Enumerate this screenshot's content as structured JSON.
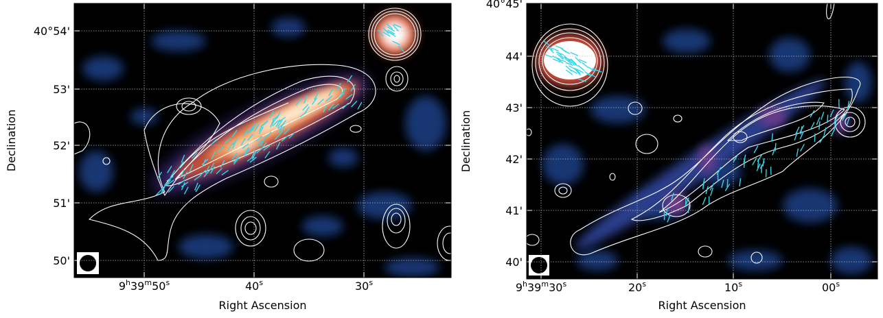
{
  "panels": [
    {
      "x_axis": {
        "label": "Right Ascension",
        "ticks": [
          [
            "9",
            "h",
            "39",
            "m",
            "50",
            "s"
          ],
          [
            "40",
            "s"
          ],
          [
            "30",
            "s"
          ]
        ]
      },
      "y_axis": {
        "label": "Declination",
        "ticks": [
          "40°54'",
          "53'",
          "52'",
          "51'",
          "50'"
        ]
      }
    },
    {
      "x_axis": {
        "label": "Right Ascension",
        "ticks": [
          [
            "9",
            "h",
            "39",
            "m",
            "30",
            "s"
          ],
          [
            "20",
            "s"
          ],
          [
            "10",
            "s"
          ],
          [
            "00",
            "s"
          ]
        ]
      },
      "y_axis": {
        "label": "Declination",
        "ticks": [
          "40°45'",
          "44'",
          "43'",
          "42'",
          "41'",
          "40'"
        ]
      }
    }
  ]
}
